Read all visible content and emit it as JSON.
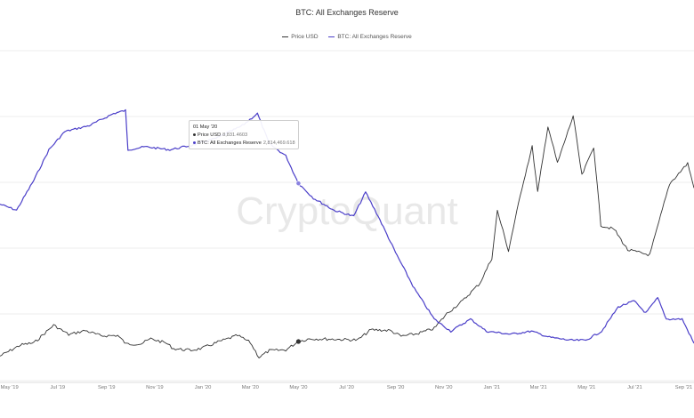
{
  "chart_data": {
    "type": "line",
    "title": "BTC: All Exchanges Reserve",
    "legend": {
      "placement": "top-center",
      "entries": [
        "Price USD",
        "BTC: All Exchanges Reserve"
      ]
    },
    "grid": true,
    "x_ticks": [
      "May '19",
      "Jul '19",
      "Sep '19",
      "Nov '19",
      "Jan '20",
      "Mar '20",
      "May '20",
      "Jul '20",
      "Sep '20",
      "Nov '20",
      "Jan '21",
      "Mar '21",
      "May '21",
      "Jul '21",
      "Sep '21"
    ],
    "x_range": [
      "2019-04-19",
      "2021-09-14"
    ],
    "series": [
      {
        "name": "Price USD",
        "color": "#333333",
        "points": [
          [
            "2019-04-19",
            5300
          ],
          [
            "2019-05-15",
            8000
          ],
          [
            "2019-06-01",
            8500
          ],
          [
            "2019-06-26",
            12800
          ],
          [
            "2019-07-15",
            10500
          ],
          [
            "2019-08-05",
            11500
          ],
          [
            "2019-08-25",
            10200
          ],
          [
            "2019-09-15",
            10300
          ],
          [
            "2019-09-26",
            8200
          ],
          [
            "2019-10-15",
            8300
          ],
          [
            "2019-10-27",
            9500
          ],
          [
            "2019-11-15",
            8500
          ],
          [
            "2019-11-25",
            7100
          ],
          [
            "2019-12-17",
            6700
          ],
          [
            "2019-12-31",
            7200
          ],
          [
            "2020-01-20",
            8700
          ],
          [
            "2020-02-14",
            10300
          ],
          [
            "2020-03-01",
            8600
          ],
          [
            "2020-03-12",
            5000
          ],
          [
            "2020-03-25",
            6600
          ],
          [
            "2020-04-15",
            6800
          ],
          [
            "2020-05-01",
            8831
          ],
          [
            "2020-05-15",
            9500
          ],
          [
            "2020-06-15",
            9400
          ],
          [
            "2020-07-15",
            9200
          ],
          [
            "2020-08-01",
            11700
          ],
          [
            "2020-08-25",
            11500
          ],
          [
            "2020-09-08",
            10100
          ],
          [
            "2020-09-28",
            10700
          ],
          [
            "2020-10-20",
            12000
          ],
          [
            "2020-11-05",
            15600
          ],
          [
            "2020-11-25",
            18700
          ],
          [
            "2020-12-17",
            23000
          ],
          [
            "2021-01-01",
            29000
          ],
          [
            "2021-01-08",
            40500
          ],
          [
            "2021-01-22",
            30800
          ],
          [
            "2021-02-08",
            46000
          ],
          [
            "2021-02-21",
            56000
          ],
          [
            "2021-02-28",
            45000
          ],
          [
            "2021-03-13",
            61000
          ],
          [
            "2021-03-25",
            52000
          ],
          [
            "2021-04-14",
            63500
          ],
          [
            "2021-04-25",
            49000
          ],
          [
            "2021-05-10",
            56000
          ],
          [
            "2021-05-19",
            37000
          ],
          [
            "2021-06-05",
            36000
          ],
          [
            "2021-06-22",
            31000
          ],
          [
            "2021-07-20",
            29800
          ],
          [
            "2021-08-14",
            47000
          ],
          [
            "2021-09-06",
            52000
          ],
          [
            "2021-09-14",
            46000
          ]
        ]
      },
      {
        "name": "BTC: All Exchanges Reserve",
        "color": "#4b3fc9",
        "points": [
          [
            "2019-04-19",
            2780000
          ],
          [
            "2019-05-10",
            2770000
          ],
          [
            "2019-06-01",
            2820000
          ],
          [
            "2019-06-20",
            2870000
          ],
          [
            "2019-07-10",
            2900000
          ],
          [
            "2019-08-10",
            2910000
          ],
          [
            "2019-09-10",
            2930000
          ],
          [
            "2019-09-25",
            2935000
          ],
          [
            "2019-09-28",
            2870000
          ],
          [
            "2019-10-20",
            2875000
          ],
          [
            "2019-11-20",
            2870000
          ],
          [
            "2019-12-20",
            2878000
          ],
          [
            "2020-01-20",
            2890000
          ],
          [
            "2020-02-20",
            2910000
          ],
          [
            "2020-03-10",
            2930000
          ],
          [
            "2020-03-25",
            2880000
          ],
          [
            "2020-04-15",
            2860000
          ],
          [
            "2020-05-01",
            2814469
          ],
          [
            "2020-05-20",
            2790000
          ],
          [
            "2020-06-15",
            2770000
          ],
          [
            "2020-07-10",
            2760000
          ],
          [
            "2020-07-25",
            2800000
          ],
          [
            "2020-08-10",
            2760000
          ],
          [
            "2020-09-01",
            2700000
          ],
          [
            "2020-09-25",
            2640000
          ],
          [
            "2020-10-20",
            2590000
          ],
          [
            "2020-11-10",
            2570000
          ],
          [
            "2020-12-05",
            2590000
          ],
          [
            "2020-12-25",
            2570000
          ],
          [
            "2021-01-25",
            2565000
          ],
          [
            "2021-02-20",
            2570000
          ],
          [
            "2021-03-15",
            2560000
          ],
          [
            "2021-04-10",
            2555000
          ],
          [
            "2021-04-30",
            2555000
          ],
          [
            "2021-05-20",
            2570000
          ],
          [
            "2021-06-10",
            2610000
          ],
          [
            "2021-06-30",
            2620000
          ],
          [
            "2021-07-15",
            2600000
          ],
          [
            "2021-07-30",
            2625000
          ],
          [
            "2021-08-10",
            2590000
          ],
          [
            "2021-08-30",
            2590000
          ],
          [
            "2021-09-14",
            2550000
          ]
        ]
      }
    ],
    "tooltip": {
      "date": "01 May '20",
      "price_label": "Price USD",
      "price_value": "8,831.4603",
      "reserve_label": "BTC: All Exchanges Reserve",
      "reserve_value": "2,814,469.618"
    }
  },
  "colors": {
    "price": "#333333",
    "reserve": "#4b3fc9",
    "grid": "#ececec"
  },
  "watermark": "CryptoQuant"
}
